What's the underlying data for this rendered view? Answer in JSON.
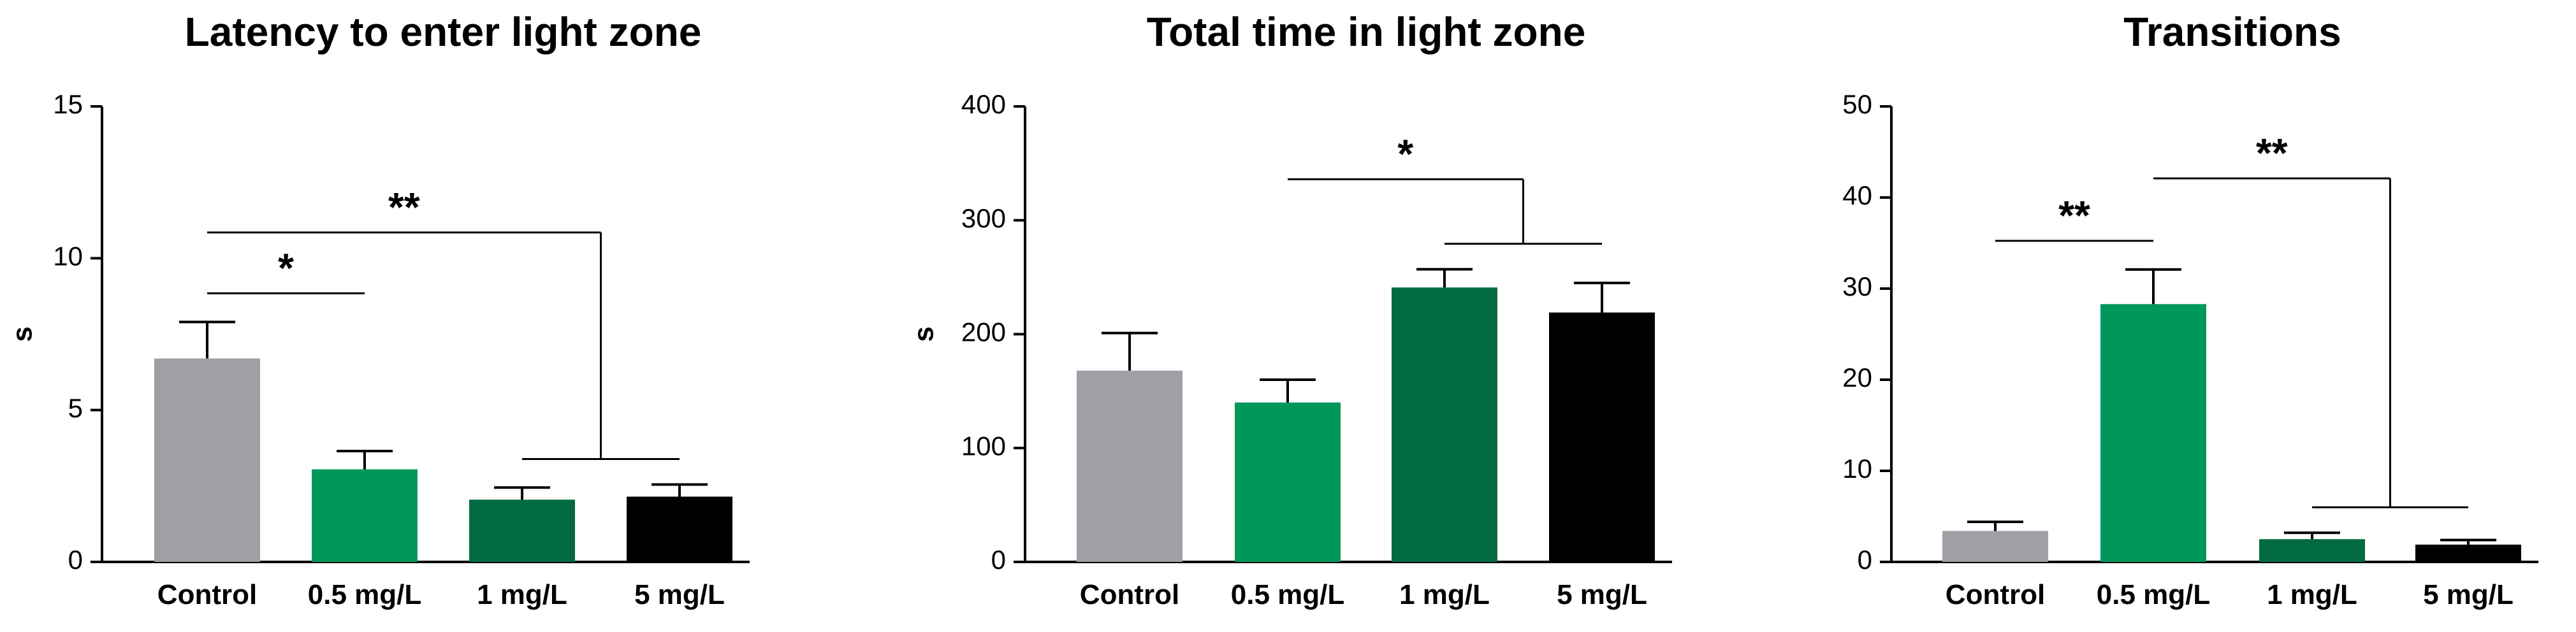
{
  "colors": {
    "control": "#a19fa6",
    "low": "#00985a",
    "mid": "#016a40",
    "high": "#000000",
    "axis": "#000000"
  },
  "chart_data": [
    {
      "type": "bar",
      "title": "Latency to enter light zone",
      "xlabel": "",
      "ylabel": "s",
      "categories": [
        "Control",
        "0.5 mg/L",
        "1 mg/L",
        "5 mg/L"
      ],
      "values": [
        6.7,
        3.05,
        2.05,
        2.15
      ],
      "errors": [
        1.2,
        0.6,
        0.4,
        0.4
      ],
      "ylim": [
        0,
        15
      ],
      "yticks": [
        "0",
        "5",
        "10",
        "15"
      ],
      "yticks_values": [
        0,
        5,
        10,
        15
      ],
      "significance": [
        {
          "label": "*",
          "from": "Control",
          "to": "0.5 mg/L"
        },
        {
          "label": "**",
          "from": "Control",
          "to": [
            "1 mg/L",
            "5 mg/L"
          ]
        }
      ]
    },
    {
      "type": "bar",
      "title": "Total time in light zone",
      "xlabel": "",
      "ylabel": "s",
      "categories": [
        "Control",
        "0.5 mg/L",
        "1 mg/L",
        "5 mg/L"
      ],
      "values": [
        168,
        140,
        241,
        219
      ],
      "errors": [
        33,
        20,
        16,
        26
      ],
      "ylim": [
        0,
        400
      ],
      "yticks": [
        "0",
        "100",
        "200",
        "300",
        "400"
      ],
      "yticks_values": [
        0,
        100,
        200,
        300,
        400
      ],
      "significance": [
        {
          "label": "*",
          "from": "0.5 mg/L",
          "to": [
            "1 mg/L",
            "5 mg/L"
          ]
        }
      ]
    },
    {
      "type": "bar",
      "title": "Transitions",
      "xlabel": "",
      "ylabel": "",
      "categories": [
        "Control",
        "0.5 mg/L",
        "1 mg/L",
        "5 mg/L"
      ],
      "values": [
        3.4,
        28.3,
        2.5,
        1.9
      ],
      "errors": [
        1.0,
        3.8,
        0.7,
        0.5
      ],
      "ylim": [
        0,
        50
      ],
      "yticks": [
        "0",
        "10",
        "20",
        "30",
        "40",
        "50"
      ],
      "yticks_values": [
        0,
        10,
        20,
        30,
        40,
        50
      ],
      "significance": [
        {
          "label": "**",
          "from": "Control",
          "to": "0.5 mg/L"
        },
        {
          "label": "**",
          "from": "0.5 mg/L",
          "to": [
            "1 mg/L",
            "5 mg/L"
          ]
        }
      ]
    }
  ]
}
